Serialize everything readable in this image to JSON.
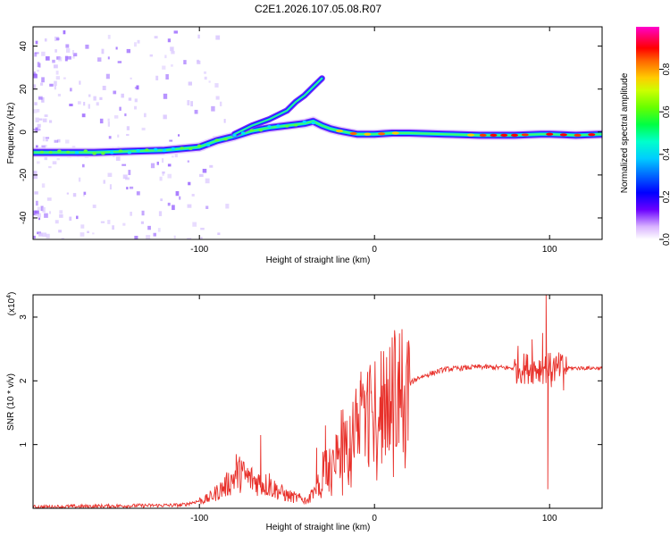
{
  "title": "C2E1.2026.107.05.08.R07",
  "chart_data": [
    {
      "type": "heatmap",
      "name": "spectrogram",
      "xlabel": "Height of straight line (km)",
      "ylabel": "Frequency (Hz)",
      "xlim": [
        -195,
        130
      ],
      "ylim": [
        -50,
        49
      ],
      "x_ticks": [
        -100,
        0,
        100
      ],
      "x_tick_labels": [
        "-100",
        "0",
        "100"
      ],
      "y_ticks": [
        -40,
        -20,
        0,
        20,
        40
      ],
      "y_tick_labels": [
        "-40",
        "-20",
        "0",
        "20",
        "40"
      ],
      "main_trace": [
        [
          -195,
          -9.5
        ],
        [
          -180,
          -9.5
        ],
        [
          -160,
          -9.5
        ],
        [
          -140,
          -9
        ],
        [
          -120,
          -8.5
        ],
        [
          -100,
          -7
        ],
        [
          -90,
          -4
        ],
        [
          -80,
          -2
        ],
        [
          -70,
          0.5
        ],
        [
          -60,
          2
        ],
        [
          -50,
          3
        ],
        [
          -40,
          4
        ],
        [
          -35,
          5
        ],
        [
          -30,
          3
        ],
        [
          -25,
          1.5
        ],
        [
          -20,
          0.5
        ],
        [
          -10,
          -1
        ],
        [
          0,
          -1
        ],
        [
          10,
          -0.5
        ],
        [
          20,
          -0.5
        ],
        [
          40,
          -1
        ],
        [
          60,
          -1.5
        ],
        [
          80,
          -1.5
        ],
        [
          95,
          -1
        ],
        [
          100,
          -1
        ],
        [
          115,
          -1.5
        ],
        [
          130,
          -1
        ]
      ],
      "secondary_trace": [
        [
          -80,
          -1
        ],
        [
          -70,
          3
        ],
        [
          -60,
          6
        ],
        [
          -50,
          10
        ],
        [
          -45,
          14
        ],
        [
          -40,
          17
        ],
        [
          -35,
          21
        ],
        [
          -30,
          25
        ]
      ],
      "colorbar": {
        "label": "Normalized spectral amplitude",
        "range": [
          0,
          1
        ],
        "ticks": [
          0.0,
          0.2,
          0.4,
          0.6,
          0.8
        ],
        "tick_labels": [
          "0.0",
          "0.2",
          "0.4",
          "0.6",
          "0.8"
        ]
      }
    },
    {
      "type": "line",
      "name": "snr",
      "xlabel": "Height of straight line (km)",
      "ylabel": "SNR (10 * v/v)",
      "y_multiplier_label": "(x10",
      "y_multiplier_exp": "4",
      "y_multiplier_close": ")",
      "xlim": [
        -195,
        130
      ],
      "ylim": [
        0,
        3.35
      ],
      "x_ticks": [
        -100,
        0,
        100
      ],
      "x_tick_labels": [
        "-100",
        "0",
        "100"
      ],
      "y_ticks": [
        1,
        2,
        3
      ],
      "y_tick_labels": [
        "1",
        "2",
        "3"
      ],
      "color": "#e8302a",
      "series_envelope": [
        [
          -195,
          0.02
        ],
        [
          -110,
          0.05
        ],
        [
          -95,
          0.15
        ],
        [
          -85,
          0.35
        ],
        [
          -78,
          0.55
        ],
        [
          -70,
          0.45
        ],
        [
          -60,
          0.35
        ],
        [
          -50,
          0.2
        ],
        [
          -38,
          0.12
        ],
        [
          -33,
          0.3
        ],
        [
          -28,
          0.65
        ],
        [
          -22,
          0.85
        ],
        [
          -15,
          1.0
        ],
        [
          -8,
          1.25
        ],
        [
          0,
          1.55
        ],
        [
          5,
          1.7
        ],
        [
          15,
          1.85
        ],
        [
          25,
          2.05
        ],
        [
          40,
          2.18
        ],
        [
          60,
          2.22
        ],
        [
          80,
          2.2
        ],
        [
          90,
          2.2
        ],
        [
          100,
          2.2
        ],
        [
          115,
          2.2
        ],
        [
          130,
          2.2
        ]
      ],
      "spikes": [
        [
          -79,
          0.85
        ],
        [
          -76,
          0.75
        ],
        [
          -65,
          1.15
        ],
        [
          -60,
          0.55
        ],
        [
          -33,
          0.95
        ],
        [
          -28,
          1.3
        ],
        [
          -22,
          1.15
        ],
        [
          -18,
          1.55
        ],
        [
          -14,
          1.45
        ],
        [
          -8,
          1.75
        ],
        [
          -2,
          1.8
        ],
        [
          6,
          1.95
        ],
        [
          12,
          1.75
        ],
        [
          82,
          2.55
        ],
        [
          90,
          2.65
        ],
        [
          96,
          2.75
        ],
        [
          98,
          3.35
        ],
        [
          99,
          0.3
        ],
        [
          101,
          1.9
        ],
        [
          104,
          2.15
        ],
        [
          108,
          1.85
        ]
      ]
    }
  ]
}
